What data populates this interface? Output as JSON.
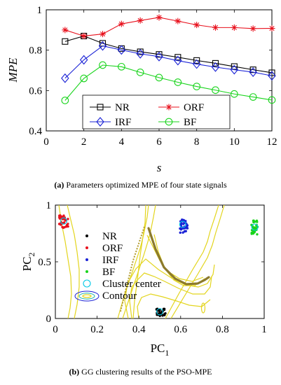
{
  "chart_data": [
    {
      "type": "line",
      "caption_letter": "(a)",
      "caption_text": " Parameters optimized MPE of four state signals",
      "xlabel": "s",
      "ylabel": "MPE",
      "xlim": [
        0,
        12
      ],
      "ylim": [
        0.4,
        1.0
      ],
      "xticks": [
        0,
        2,
        4,
        6,
        8,
        10,
        12
      ],
      "yticks": [
        0.4,
        0.6,
        0.8,
        1.0
      ],
      "ytick_labels": [
        "0.4",
        "0.6",
        "0.8",
        "1"
      ],
      "grid": false,
      "legend_placement": "center-bottom",
      "x": [
        1,
        2,
        3,
        4,
        5,
        6,
        7,
        8,
        9,
        10,
        11,
        12
      ],
      "series": [
        {
          "name": "NR",
          "color": "#000000",
          "marker": "square",
          "values": [
            0.843,
            0.87,
            0.834,
            0.808,
            0.792,
            0.779,
            0.765,
            0.749,
            0.735,
            0.719,
            0.703,
            0.688
          ]
        },
        {
          "name": "ORF",
          "color": "#e8111d",
          "marker": "star",
          "values": [
            0.9,
            0.87,
            0.88,
            0.93,
            0.947,
            0.962,
            0.944,
            0.925,
            0.912,
            0.912,
            0.907,
            0.908
          ]
        },
        {
          "name": "IRF",
          "color": "#1a22d6",
          "marker": "diamond",
          "values": [
            0.661,
            0.752,
            0.821,
            0.801,
            0.782,
            0.768,
            0.748,
            0.731,
            0.716,
            0.703,
            0.691,
            0.673
          ]
        },
        {
          "name": "BF",
          "color": "#18d41b",
          "marker": "circle",
          "values": [
            0.551,
            0.66,
            0.726,
            0.718,
            0.69,
            0.664,
            0.641,
            0.62,
            0.602,
            0.583,
            0.568,
            0.553
          ]
        }
      ]
    },
    {
      "type": "scatter",
      "caption_letter": "(b)",
      "caption_text": " GG clustering results of the PSO-MPE",
      "xlabel": "PC",
      "xlabel_sub": "1",
      "ylabel": "PC",
      "ylabel_sub": "2",
      "xlim": [
        0,
        1
      ],
      "ylim": [
        0,
        1
      ],
      "xticks": [
        0,
        0.2,
        0.4,
        0.6,
        0.8,
        1
      ],
      "xtick_labels": [
        "0",
        "0.2",
        "0.4",
        "0.6",
        "0.8",
        "1"
      ],
      "yticks": [
        0,
        0.5,
        1
      ],
      "ytick_labels": [
        "0",
        "0.5",
        "1"
      ],
      "grid": false,
      "legend_placement": "left",
      "legend": [
        {
          "name": "NR",
          "color": "#000000",
          "kind": "dot"
        },
        {
          "name": "ORF",
          "color": "#e8111d",
          "kind": "dot"
        },
        {
          "name": "IRF",
          "color": "#1a22d6",
          "kind": "dot"
        },
        {
          "name": "BF",
          "color": "#18d41b",
          "kind": "dot"
        },
        {
          "name": "Cluster center",
          "color": "#00c8e6",
          "kind": "ring"
        },
        {
          "name": "Contour",
          "color": "#e3d51e",
          "kind": "contour"
        }
      ],
      "clusters": [
        {
          "name": "NR",
          "color": "#000000",
          "center": [
            0.505,
            0.055
          ],
          "spread": [
            0.022,
            0.035
          ],
          "count": 28
        },
        {
          "name": "ORF",
          "color": "#e8111d",
          "center": [
            0.04,
            0.855
          ],
          "spread": [
            0.022,
            0.055
          ],
          "count": 36
        },
        {
          "name": "IRF",
          "color": "#1a22d6",
          "center": [
            0.615,
            0.815
          ],
          "spread": [
            0.018,
            0.06
          ],
          "count": 36
        },
        {
          "name": "BF",
          "color": "#18d41b",
          "center": [
            0.955,
            0.8
          ],
          "spread": [
            0.016,
            0.065
          ],
          "count": 36
        }
      ],
      "cluster_centers": [
        [
          0.04,
          0.86
        ],
        [
          0.61,
          0.83
        ],
        [
          0.955,
          0.805
        ],
        [
          0.5,
          0.06
        ]
      ],
      "contour_color": "#e3d51e"
    }
  ]
}
